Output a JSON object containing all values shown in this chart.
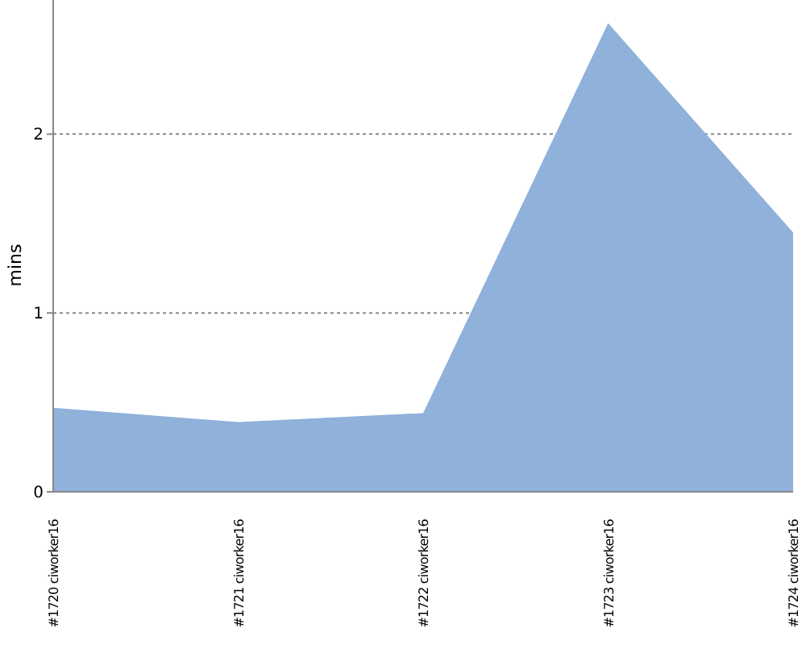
{
  "chart_data": {
    "type": "area",
    "ylabel": "mins",
    "categories": [
      "#1720 ciworker16",
      "#1721 ciworker16",
      "#1722 ciworker16",
      "#1723 ciworker16",
      "#1724 ciworker16"
    ],
    "series": [
      {
        "color": "#8fb1da",
        "values": [
          0.47,
          0.39,
          0.44,
          2.62,
          1.45
        ]
      }
    ],
    "ylim": [
      0,
      2.75
    ],
    "yticks": [
      0,
      1,
      2
    ],
    "grid": "y"
  }
}
